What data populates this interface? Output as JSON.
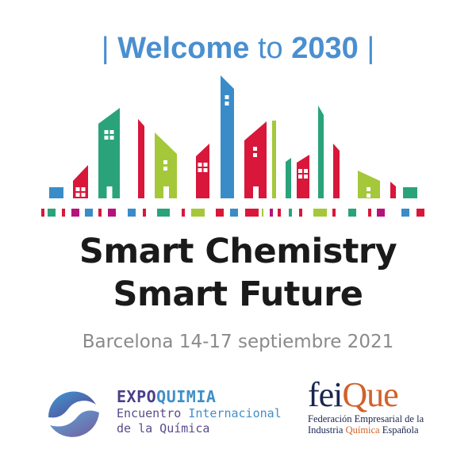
{
  "welcome": {
    "bar_left": "|",
    "word1": "Welcome",
    "word2": "to",
    "word3": "2030",
    "bar_right": "|"
  },
  "headline": {
    "line1": "Smart Chemistry",
    "line2": "Smart Future"
  },
  "event": {
    "dates": "Barcelona 14-17 septiembre 2021"
  },
  "expoquimia": {
    "title_a": "EXPO",
    "title_b": "QUIMIA",
    "sub1_a": "Encuentro",
    "sub1_b": "Internacional",
    "sub2": "de la Química"
  },
  "feique": {
    "logo_a": "fei",
    "logo_b": "Que",
    "sub1": "Federación Empresarial de la",
    "sub2_a": "Industria",
    "sub2_b": "Química",
    "sub2_c": "Española"
  },
  "colors": {
    "blue": "#3a8cc9",
    "green": "#2aa37a",
    "red": "#d8173a",
    "lime": "#a4c83a",
    "magenta": "#b5137a",
    "headline": "#1a1a1a",
    "welcome": "#4a8fd0"
  }
}
